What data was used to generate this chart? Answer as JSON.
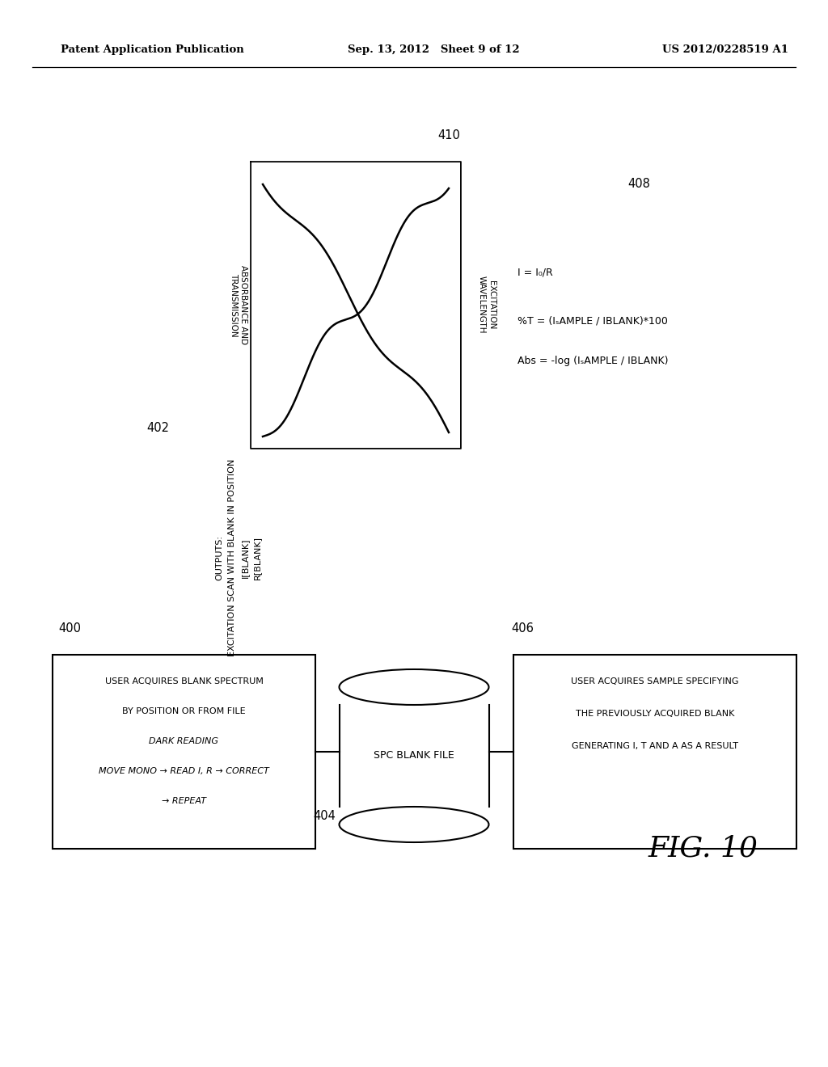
{
  "bg_color": "#ffffff",
  "header_left": "Patent Application Publication",
  "header_center": "Sep. 13, 2012   Sheet 9 of 12",
  "header_right": "US 2012/0228519 A1",
  "fig_label": "FIG. 10",
  "box1_lines": [
    [
      "USER ACQUIRES BLANK SPECTRUM",
      false
    ],
    [
      "BY POSITION OR FROM FILE",
      false
    ],
    [
      "DARK READING",
      true
    ],
    [
      "MOVE MONO → READ I, R → CORRECT",
      true
    ],
    [
      "→ REPEAT",
      true
    ]
  ],
  "box1_label": "400",
  "box2_text": "SPC BLANK FILE",
  "box2_label": "404",
  "box3_lines": [
    "USER ACQUIRES SAMPLE SPECIFYING",
    "THE PREVIOUSLY ACQUIRED BLANK",
    "GENERATING I, T AND A AS A RESULT"
  ],
  "box3_label": "406",
  "output_label": "402",
  "output_lines": [
    "OUTPUTS:",
    "EXCITATION SCAN WITH BLANK IN POSITION",
    "I[BLANK]",
    "R[BLANK]"
  ],
  "graph_label": "410",
  "graph_ylabel": "ABSORBANCE AND\nTRANSMISSION",
  "graph_xlabel": "EXCITATION\nWAVELENGTH",
  "eq_label": "408",
  "eq_line1": "I = I₀/R⁣",
  "eq_line2": "%T = (ISAMPLE / IBLANK)*100",
  "eq_line3": "Abs = -log (ISAMPLE / IBLANK)"
}
